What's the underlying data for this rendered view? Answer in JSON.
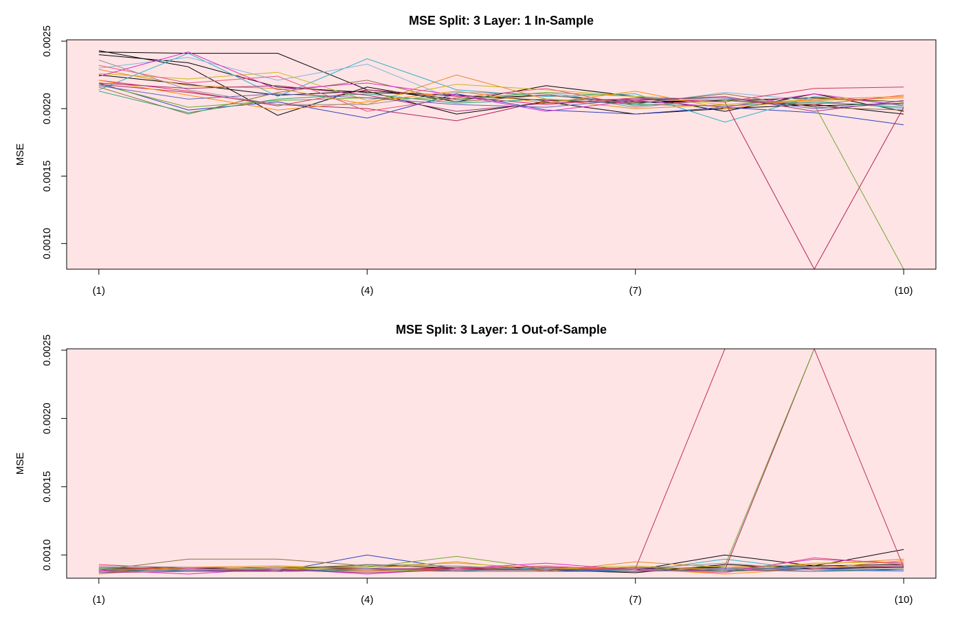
{
  "plot_background": "#ffe4e6",
  "chart_data": [
    {
      "type": "line",
      "title": "MSE Split: 3 Layer: 1 In-Sample",
      "xlabel": "",
      "ylabel": "MSE",
      "x": [
        1,
        2,
        3,
        4,
        5,
        6,
        7,
        8,
        9,
        10
      ],
      "xticks": [
        1,
        4,
        7,
        10
      ],
      "xtick_labels": [
        "(1)",
        "(4)",
        "(7)",
        "(10)"
      ],
      "yticks": [
        0.001,
        0.0015,
        0.002,
        0.0025
      ],
      "ytick_labels": [
        "0.0010",
        "0.0015",
        "0.0020",
        "0.0025"
      ],
      "xlim": [
        0.64,
        10.36
      ],
      "ylim": [
        0.00081,
        0.00251
      ],
      "grid": false,
      "series": [
        {
          "color": "#000000",
          "values": [
            0.00243,
            0.00231,
            0.00195,
            0.00216,
            0.00205,
            0.00217,
            0.00209,
            0.00198,
            0.00211,
            0.00198
          ]
        },
        {
          "color": "#000000",
          "values": [
            0.00242,
            0.00241,
            0.00241,
            0.00214,
            0.00207,
            0.0021,
            0.00205,
            0.00206,
            0.00208,
            0.00205
          ]
        },
        {
          "color": "#000000",
          "values": [
            0.00225,
            0.00218,
            0.0021,
            0.00213,
            0.00196,
            0.00205,
            0.00196,
            0.002,
            0.00203,
            0.00196
          ]
        },
        {
          "color": "#000000",
          "values": [
            0.0024,
            0.00234,
            0.00216,
            0.00212,
            0.0021,
            0.00206,
            0.00204,
            0.00206,
            0.00202,
            0.00204
          ]
        },
        {
          "color": "#2b3fbf",
          "values": [
            0.00219,
            0.00199,
            0.00205,
            0.00193,
            0.00211,
            0.00199,
            0.00196,
            0.00201,
            0.00197,
            0.00188
          ]
        },
        {
          "color": "#2ab0c8",
          "values": [
            0.00214,
            0.00241,
            0.00209,
            0.00237,
            0.00214,
            0.00209,
            0.00211,
            0.0019,
            0.00209,
            0.00203
          ]
        },
        {
          "color": "#7ab8d8",
          "values": [
            0.0023,
            0.00238,
            0.00221,
            0.00233,
            0.00206,
            0.00212,
            0.00203,
            0.00212,
            0.00206,
            0.002
          ]
        },
        {
          "color": "#b22058",
          "values": [
            0.00218,
            0.00212,
            0.00203,
            0.002,
            0.00191,
            0.00206,
            0.00207,
            0.00205,
            0.00081,
            0.00201
          ]
        },
        {
          "color": "#d0306a",
          "values": [
            0.00221,
            0.00213,
            0.00202,
            0.00214,
            0.00209,
            0.00203,
            0.00208,
            0.00205,
            0.00215,
            0.00216
          ]
        },
        {
          "color": "#6ca82c",
          "values": [
            0.00218,
            0.00201,
            0.00206,
            0.00208,
            0.00207,
            0.00212,
            0.00209,
            0.00206,
            0.00203,
            0.00081
          ]
        },
        {
          "color": "#8a6e3e",
          "values": [
            0.00216,
            0.00196,
            0.00212,
            0.00221,
            0.00205,
            0.0021,
            0.00204,
            0.00211,
            0.00201,
            0.00199
          ]
        },
        {
          "color": "#e08a1c",
          "values": [
            0.00229,
            0.00217,
            0.00215,
            0.00203,
            0.00225,
            0.00207,
            0.002,
            0.00203,
            0.00206,
            0.00208
          ]
        },
        {
          "color": "#c8b418",
          "values": [
            0.00226,
            0.00222,
            0.00227,
            0.00206,
            0.00218,
            0.00214,
            0.00209,
            0.00203,
            0.00207,
            0.00205
          ]
        },
        {
          "color": "#d828c8",
          "values": [
            0.00224,
            0.00242,
            0.00214,
            0.00219,
            0.0021,
            0.00198,
            0.00206,
            0.00201,
            0.00211,
            0.00202
          ]
        },
        {
          "color": "#e8507c",
          "values": [
            0.00232,
            0.00219,
            0.00224,
            0.00198,
            0.00208,
            0.00215,
            0.00202,
            0.00207,
            0.00203,
            0.0021
          ]
        },
        {
          "color": "#20a070",
          "values": [
            0.00213,
            0.00197,
            0.00207,
            0.00211,
            0.00204,
            0.00207,
            0.00203,
            0.00202,
            0.00205,
            0.00201
          ]
        },
        {
          "color": "#ff8c00",
          "values": [
            0.00221,
            0.0021,
            0.00199,
            0.00205,
            0.00213,
            0.00204,
            0.00213,
            0.002,
            0.00207,
            0.00209
          ]
        },
        {
          "color": "#6060c0",
          "values": [
            0.00217,
            0.00207,
            0.00211,
            0.00208,
            0.00203,
            0.00201,
            0.00207,
            0.00208,
            0.002,
            0.00204
          ]
        },
        {
          "color": "#909090",
          "values": [
            0.00236,
            0.00214,
            0.00203,
            0.00203,
            0.00212,
            0.00211,
            0.00201,
            0.00207,
            0.00204,
            0.00203
          ]
        },
        {
          "color": "#a03070",
          "values": [
            0.00219,
            0.00215,
            0.00217,
            0.0021,
            0.00198,
            0.00204,
            0.00206,
            0.00209,
            0.00198,
            0.00206
          ]
        }
      ]
    },
    {
      "type": "line",
      "title": "MSE Split: 3 Layer: 1 Out-of-Sample",
      "xlabel": "",
      "ylabel": "MSE",
      "x": [
        1,
        2,
        3,
        4,
        5,
        6,
        7,
        8,
        9,
        10
      ],
      "xticks": [
        1,
        4,
        7,
        10
      ],
      "xtick_labels": [
        "(1)",
        "(4)",
        "(7)",
        "(10)"
      ],
      "yticks": [
        0.001,
        0.0015,
        0.002,
        0.0025
      ],
      "ytick_labels": [
        "0.0010",
        "0.0015",
        "0.0020",
        "0.0025"
      ],
      "xlim": [
        0.64,
        10.36
      ],
      "ylim": [
        0.00083,
        0.00251
      ],
      "grid": false,
      "series": [
        {
          "color": "#000000",
          "values": [
            0.0009,
            0.00091,
            0.0009,
            0.00092,
            0.00091,
            0.0009,
            0.0009,
            0.00091,
            0.00092,
            0.00104
          ]
        },
        {
          "color": "#000000",
          "values": [
            0.00089,
            0.0009,
            0.00089,
            0.00093,
            0.0009,
            0.00091,
            0.00089,
            0.001,
            0.00092,
            0.00093
          ]
        },
        {
          "color": "#000000",
          "values": [
            0.00088,
            0.0009,
            0.00091,
            0.0009,
            0.00089,
            0.00089,
            0.00087,
            0.00093,
            0.0009,
            0.00091
          ]
        },
        {
          "color": "#2b3fbf",
          "values": [
            0.00088,
            0.00089,
            0.00088,
            0.001,
            0.0009,
            0.00089,
            0.00088,
            0.0009,
            0.0009,
            0.00089
          ]
        },
        {
          "color": "#2ab0c8",
          "values": [
            0.00087,
            0.0009,
            0.00088,
            0.00089,
            0.00088,
            0.00091,
            0.00088,
            0.00097,
            0.00089,
            0.00088
          ]
        },
        {
          "color": "#b22058",
          "values": [
            0.0009,
            0.0009,
            0.00089,
            0.0009,
            0.0009,
            0.00089,
            0.00091,
            0.00089,
            0.00251,
            0.00251
          ]
        },
        {
          "color": "#c0304c",
          "values": [
            0.00091,
            0.0009,
            0.00088,
            0.00089,
            0.00091,
            0.00091,
            0.0009,
            0.00251,
            0.00251,
            0.00091
          ]
        },
        {
          "color": "#6ca82c",
          "values": [
            0.00089,
            0.00089,
            0.0009,
            0.00091,
            0.00099,
            0.0009,
            0.00089,
            0.00092,
            0.00251,
            0.00251
          ]
        },
        {
          "color": "#8a6e3e",
          "values": [
            0.00089,
            0.00097,
            0.00097,
            0.00092,
            0.00091,
            0.00089,
            0.00091,
            0.0009,
            0.00091,
            0.00092
          ]
        },
        {
          "color": "#e08a1c",
          "values": [
            0.00088,
            0.00091,
            0.00092,
            0.0009,
            0.00095,
            0.00088,
            0.00095,
            0.00091,
            0.00093,
            0.00097
          ]
        },
        {
          "color": "#c8b418",
          "values": [
            0.0009,
            0.00089,
            0.00091,
            0.00092,
            0.00094,
            0.0009,
            0.00092,
            0.00089,
            0.00094,
            0.00095
          ]
        },
        {
          "color": "#d828c8",
          "values": [
            0.00089,
            0.00086,
            0.0009,
            0.00086,
            0.0009,
            0.00094,
            0.00089,
            0.00088,
            0.00097,
            0.00094
          ]
        },
        {
          "color": "#e8507c",
          "values": [
            0.00093,
            0.0009,
            0.00089,
            0.00088,
            0.0009,
            0.00092,
            0.00089,
            0.00087,
            0.00098,
            0.00093
          ]
        },
        {
          "color": "#20a070",
          "values": [
            0.0009,
            0.00088,
            0.00088,
            0.00089,
            0.00088,
            0.00088,
            0.00088,
            0.00089,
            0.00088,
            0.0009
          ]
        },
        {
          "color": "#ff8c00",
          "values": [
            0.00086,
            0.00091,
            0.0009,
            0.00089,
            0.00089,
            0.0009,
            0.0009,
            0.00086,
            0.0009,
            0.00096
          ]
        },
        {
          "color": "#6060c0",
          "values": [
            0.00088,
            0.00089,
            0.00088,
            0.0009,
            0.00089,
            0.0009,
            0.00088,
            0.0009,
            0.00088,
            0.00089
          ]
        },
        {
          "color": "#909090",
          "values": [
            0.00092,
            0.00091,
            0.0009,
            0.00093,
            0.00092,
            0.00089,
            0.0009,
            0.00094,
            0.00089,
            0.0009
          ]
        },
        {
          "color": "#a03070",
          "values": [
            0.00087,
            0.00088,
            0.00089,
            0.00087,
            0.00089,
            0.00089,
            0.0009,
            0.00088,
            0.0009,
            0.00092
          ]
        }
      ]
    }
  ]
}
